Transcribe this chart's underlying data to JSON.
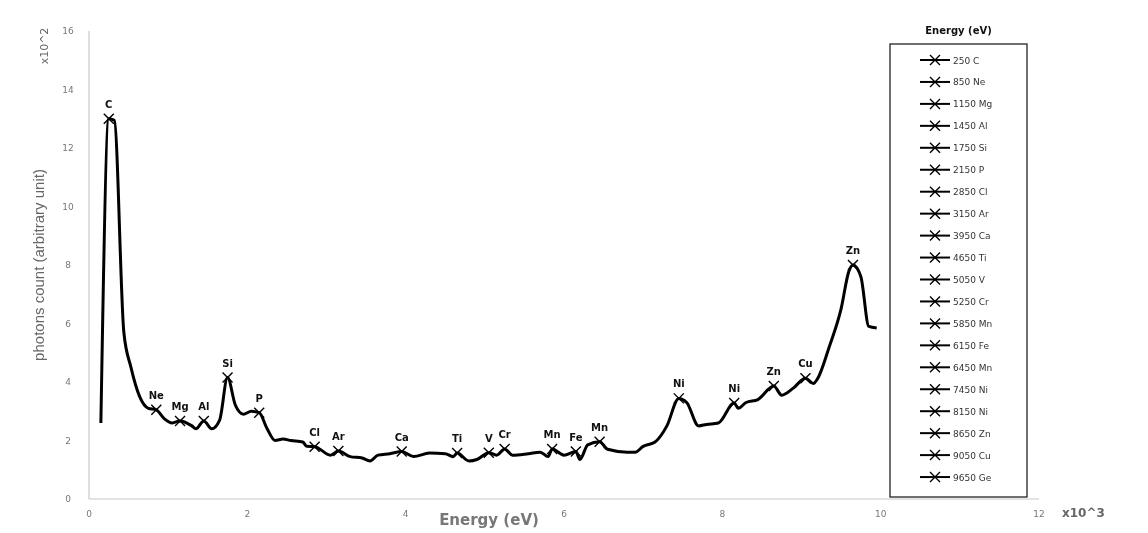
{
  "chart_data": {
    "type": "line",
    "xlabel": "Energy (eV)",
    "ylabel": "photons count  (arbitrary unit)",
    "legend_title": "Energy (eV)",
    "legend": "right",
    "line_style": "solid",
    "xlim": [
      0,
      12
    ],
    "xticks": [
      0,
      2,
      4,
      6,
      8,
      10,
      12
    ],
    "ylim": [
      0,
      16
    ],
    "yticks": [
      0,
      2,
      4,
      6,
      8,
      10,
      12,
      14,
      16
    ],
    "series": [
      {
        "color": "#000000",
        "marker": "none",
        "x": [
          0.15,
          0.25,
          0.32,
          0.44,
          0.53,
          0.64,
          0.75,
          0.85,
          0.95,
          1.05,
          1.15,
          1.3,
          1.35,
          1.45,
          1.55,
          1.65,
          1.75,
          1.85,
          1.95,
          2.05,
          2.15,
          2.25,
          2.35,
          2.45,
          2.55,
          2.7,
          2.75,
          2.85,
          3.05,
          3.15,
          3.3,
          3.45,
          3.55,
          3.65,
          3.8,
          3.95,
          4.1,
          4.3,
          4.5,
          4.6,
          4.65,
          4.8,
          4.9,
          5.05,
          5.15,
          5.25,
          5.35,
          5.55,
          5.7,
          5.8,
          5.85,
          6.0,
          6.15,
          6.2,
          6.3,
          6.45,
          6.55,
          6.8,
          6.9,
          7.0,
          7.15,
          7.3,
          7.45,
          7.55,
          7.7,
          7.8,
          7.95,
          8.15,
          8.2,
          8.3,
          8.45,
          8.65,
          8.75,
          8.9,
          9.05,
          9.15,
          9.2,
          9.35,
          9.5,
          9.6,
          9.65,
          9.75,
          9.85,
          9.95
        ],
        "values": [
          2.6,
          13.0,
          12.95,
          5.7,
          4.5,
          3.5,
          3.1,
          3.05,
          2.75,
          2.6,
          2.67,
          2.5,
          2.4,
          2.67,
          2.4,
          2.7,
          4.15,
          3.2,
          2.9,
          3.0,
          2.95,
          2.4,
          2.0,
          2.05,
          2.0,
          1.95,
          1.8,
          1.79,
          1.5,
          1.64,
          1.45,
          1.4,
          1.3,
          1.5,
          1.55,
          1.62,
          1.45,
          1.57,
          1.55,
          1.45,
          1.57,
          1.3,
          1.35,
          1.58,
          1.5,
          1.71,
          1.5,
          1.55,
          1.6,
          1.45,
          1.71,
          1.5,
          1.62,
          1.35,
          1.85,
          1.96,
          1.7,
          1.6,
          1.6,
          1.8,
          1.95,
          2.5,
          3.44,
          3.3,
          2.5,
          2.55,
          2.6,
          3.28,
          3.1,
          3.3,
          3.4,
          3.86,
          3.55,
          3.8,
          4.13,
          3.95,
          4.1,
          5.2,
          6.5,
          7.8,
          8.0,
          7.6,
          5.9,
          5.85
        ]
      },
      {
        "name": "250 C",
        "color": "#000000",
        "marker": "cross",
        "x": [
          0.25
        ],
        "values": [
          13.0
        ]
      },
      {
        "name": "850 Ne",
        "color": "#000000",
        "marker": "cross",
        "x": [
          0.85
        ],
        "values": [
          3.05
        ]
      },
      {
        "name": "1150 Mg",
        "color": "#000000",
        "marker": "cross",
        "x": [
          1.15
        ],
        "values": [
          2.67
        ]
      },
      {
        "name": "1450 Al",
        "color": "#000000",
        "marker": "cross",
        "x": [
          1.45
        ],
        "values": [
          2.67
        ]
      },
      {
        "name": "1750 Si",
        "color": "#000000",
        "marker": "cross",
        "x": [
          1.75
        ],
        "values": [
          4.15
        ]
      },
      {
        "name": "2150 P",
        "color": "#000000",
        "marker": "cross",
        "x": [
          2.15
        ],
        "values": [
          2.95
        ]
      },
      {
        "name": "2850 Cl",
        "color": "#000000",
        "marker": "cross",
        "x": [
          2.85
        ],
        "values": [
          1.79
        ]
      },
      {
        "name": "3150 Ar",
        "color": "#000000",
        "marker": "cross",
        "x": [
          3.15
        ],
        "values": [
          1.64
        ]
      },
      {
        "name": "3950 Ca",
        "color": "#000000",
        "marker": "cross",
        "x": [
          3.95
        ],
        "values": [
          1.62
        ]
      },
      {
        "name": "4650 Ti",
        "color": "#000000",
        "marker": "cross",
        "x": [
          4.65
        ],
        "values": [
          1.57
        ]
      },
      {
        "name": "5050 V",
        "color": "#000000",
        "marker": "cross",
        "x": [
          5.05
        ],
        "values": [
          1.58
        ]
      },
      {
        "name": "5250 Cr",
        "color": "#000000",
        "marker": "cross",
        "x": [
          5.25
        ],
        "values": [
          1.71
        ]
      },
      {
        "name": "5850 Mn",
        "color": "#000000",
        "marker": "cross",
        "x": [
          5.85
        ],
        "values": [
          1.71
        ]
      },
      {
        "name": "6150 Fe",
        "color": "#000000",
        "marker": "cross",
        "x": [
          6.15
        ],
        "values": [
          1.62
        ]
      },
      {
        "name": "6450 Mn",
        "color": "#000000",
        "marker": "cross",
        "x": [
          6.45
        ],
        "values": [
          1.96
        ]
      },
      {
        "name": "7450 Ni",
        "color": "#000000",
        "marker": "cross",
        "x": [
          7.45
        ],
        "values": [
          3.44
        ]
      },
      {
        "name": "8150 Ni",
        "color": "#000000",
        "marker": "cross",
        "x": [
          8.15
        ],
        "values": [
          3.28
        ]
      },
      {
        "name": "8650 Zn",
        "color": "#000000",
        "marker": "cross",
        "x": [
          8.65
        ],
        "values": [
          3.86
        ]
      },
      {
        "name": "9050 Cu",
        "color": "#000000",
        "marker": "cross",
        "x": [
          9.05
        ],
        "values": [
          4.13
        ]
      },
      {
        "name": "9650 Ge",
        "color": "#000000",
        "marker": "cross",
        "x": [
          9.65
        ],
        "values": [
          8.0
        ]
      }
    ],
    "annotations": [
      "x10^2",
      "x10^3",
      {
        "text": "C",
        "x": 0.25,
        "y": 13.0
      },
      {
        "text": "Ne",
        "x": 0.85,
        "y": 3.05
      },
      {
        "text": "Mg",
        "x": 1.15,
        "y": 2.67
      },
      {
        "text": "Al",
        "x": 1.45,
        "y": 2.67
      },
      {
        "text": "Si",
        "x": 1.75,
        "y": 4.15
      },
      {
        "text": "P",
        "x": 2.15,
        "y": 2.95
      },
      {
        "text": "Cl",
        "x": 2.85,
        "y": 1.79
      },
      {
        "text": "Ar",
        "x": 3.15,
        "y": 1.64
      },
      {
        "text": "Ca",
        "x": 3.95,
        "y": 1.62
      },
      {
        "text": "Ti",
        "x": 4.65,
        "y": 1.57
      },
      {
        "text": "V",
        "x": 5.05,
        "y": 1.58
      },
      {
        "text": "Cr",
        "x": 5.25,
        "y": 1.71
      },
      {
        "text": "Mn",
        "x": 5.85,
        "y": 1.71
      },
      {
        "text": "Fe",
        "x": 6.15,
        "y": 1.62
      },
      {
        "text": "Mn",
        "x": 6.45,
        "y": 1.96
      },
      {
        "text": "Ni",
        "x": 7.45,
        "y": 3.44
      },
      {
        "text": "Ni",
        "x": 8.15,
        "y": 3.28
      },
      {
        "text": "Zn",
        "x": 8.65,
        "y": 3.86
      },
      {
        "text": "Cu",
        "x": 9.05,
        "y": 4.13
      },
      {
        "text": "Zn",
        "x": 9.65,
        "y": 8.0
      }
    ]
  }
}
